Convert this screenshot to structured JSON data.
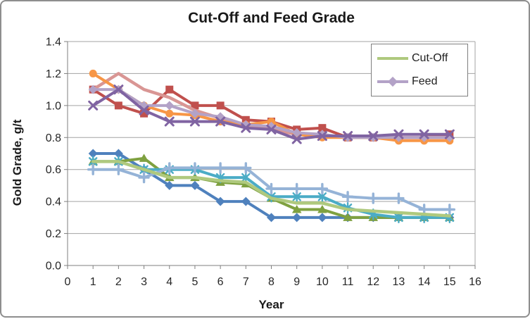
{
  "title": "Cut-Off and Feed Grade",
  "axes": {
    "x_title": "Year",
    "y_title": "Gold Grade, g/t",
    "x_tick_labels": [
      "0",
      "1",
      "2",
      "3",
      "4",
      "5",
      "6",
      "7",
      "8",
      "9",
      "10",
      "11",
      "12",
      "13",
      "14",
      "15",
      "16"
    ],
    "y_tick_labels": [
      "0.0",
      "0.2",
      "0.4",
      "0.6",
      "0.8",
      "1.0",
      "1.2",
      "1.4"
    ]
  },
  "legend": {
    "items": [
      {
        "label": "Cut-Off",
        "color": "#AFC97E",
        "marker": "none"
      },
      {
        "label": "Feed",
        "color": "#B3A2C7",
        "marker": "diamond"
      }
    ]
  },
  "frame": {
    "border_color": "#8E8E8E",
    "grid_color": "#A3A3A3",
    "axis_color": "#7F7F7F",
    "text_color": "#262626",
    "background": "#FFFFFF"
  },
  "chart_data": {
    "type": "line",
    "title": "Cut-Off and Feed Grade",
    "xlabel": "Year",
    "ylabel": "Gold Grade, g/t",
    "xlim": [
      0,
      16
    ],
    "ylim": [
      0.0,
      1.4
    ],
    "x_tick_step": 1,
    "y_tick_step": 0.2,
    "grid": "horizontal",
    "legend_position": "top-right-inside",
    "x": [
      1,
      2,
      3,
      4,
      5,
      6,
      7,
      8,
      9,
      10,
      11,
      12,
      13,
      14,
      15
    ],
    "series": [
      {
        "name": "cutoff-blue-diamond",
        "group": "cut-off",
        "color": "#4F81BD",
        "marker": "diamond",
        "in_legend": false,
        "values": [
          0.7,
          0.7,
          0.6,
          0.5,
          0.5,
          0.4,
          0.4,
          0.3,
          0.3,
          0.3,
          0.3,
          0.3,
          0.3,
          0.3,
          0.3
        ]
      },
      {
        "name": "cutoff-green-triangle",
        "group": "cut-off",
        "color": "#7FA140",
        "marker": "triangle",
        "in_legend": false,
        "values": [
          0.65,
          0.65,
          0.67,
          0.55,
          0.55,
          0.52,
          0.51,
          0.42,
          0.35,
          0.35,
          0.3,
          0.3,
          0.3,
          0.3,
          0.3
        ]
      },
      {
        "name": "cutoff-teal-star",
        "group": "cut-off",
        "color": "#4BACC6",
        "marker": "star",
        "in_legend": false,
        "values": [
          0.65,
          0.65,
          0.6,
          0.6,
          0.6,
          0.55,
          0.55,
          0.43,
          0.43,
          0.43,
          0.36,
          0.32,
          0.3,
          0.3,
          0.3
        ]
      },
      {
        "name": "cutoff-lightblue-plus",
        "group": "cut-off",
        "color": "#95B3D7",
        "marker": "plus",
        "in_legend": false,
        "values": [
          0.6,
          0.6,
          0.55,
          0.61,
          0.61,
          0.61,
          0.61,
          0.48,
          0.48,
          0.48,
          0.43,
          0.42,
          0.42,
          0.35,
          0.35
        ]
      },
      {
        "name": "cutoff-lightgreen",
        "group": "cut-off",
        "color": "#AFC97E",
        "marker": "none",
        "in_legend": true,
        "legend_label": "Cut-Off",
        "values": [
          0.65,
          0.65,
          0.6,
          0.55,
          0.55,
          0.53,
          0.52,
          0.42,
          0.39,
          0.39,
          0.35,
          0.34,
          0.33,
          0.32,
          0.31
        ]
      },
      {
        "name": "feed-red-square",
        "group": "feed",
        "color": "#C0504D",
        "marker": "square",
        "in_legend": false,
        "values": [
          1.1,
          1.0,
          0.95,
          1.1,
          1.0,
          1.0,
          0.91,
          0.9,
          0.85,
          0.86,
          0.8,
          0.8,
          0.8,
          0.8,
          0.82
        ]
      },
      {
        "name": "feed-salmon",
        "group": "feed",
        "color": "#D99694",
        "marker": "none",
        "in_legend": false,
        "values": [
          1.1,
          1.2,
          1.1,
          1.05,
          0.97,
          0.92,
          0.88,
          0.85,
          0.82,
          0.81,
          0.8,
          0.8,
          0.8,
          0.8,
          0.8
        ]
      },
      {
        "name": "feed-orange-circle",
        "group": "feed",
        "color": "#F79646",
        "marker": "circle",
        "in_legend": false,
        "values": [
          1.2,
          1.1,
          1.0,
          0.95,
          0.94,
          0.9,
          0.88,
          0.9,
          0.82,
          0.8,
          0.8,
          0.8,
          0.78,
          0.78,
          0.78
        ]
      },
      {
        "name": "feed-lavender-diamond",
        "group": "feed",
        "color": "#B3A2C7",
        "marker": "diamond",
        "in_legend": true,
        "legend_label": "Feed",
        "values": [
          1.1,
          1.1,
          1.0,
          1.0,
          0.95,
          0.93,
          0.88,
          0.87,
          0.83,
          0.82,
          0.8,
          0.8,
          0.8,
          0.8,
          0.8
        ]
      },
      {
        "name": "feed-purple-x",
        "group": "feed",
        "color": "#8064A2",
        "marker": "x",
        "in_legend": false,
        "values": [
          1.0,
          1.1,
          0.97,
          0.9,
          0.9,
          0.9,
          0.86,
          0.85,
          0.79,
          0.81,
          0.81,
          0.81,
          0.82,
          0.82,
          0.82
        ]
      }
    ]
  }
}
